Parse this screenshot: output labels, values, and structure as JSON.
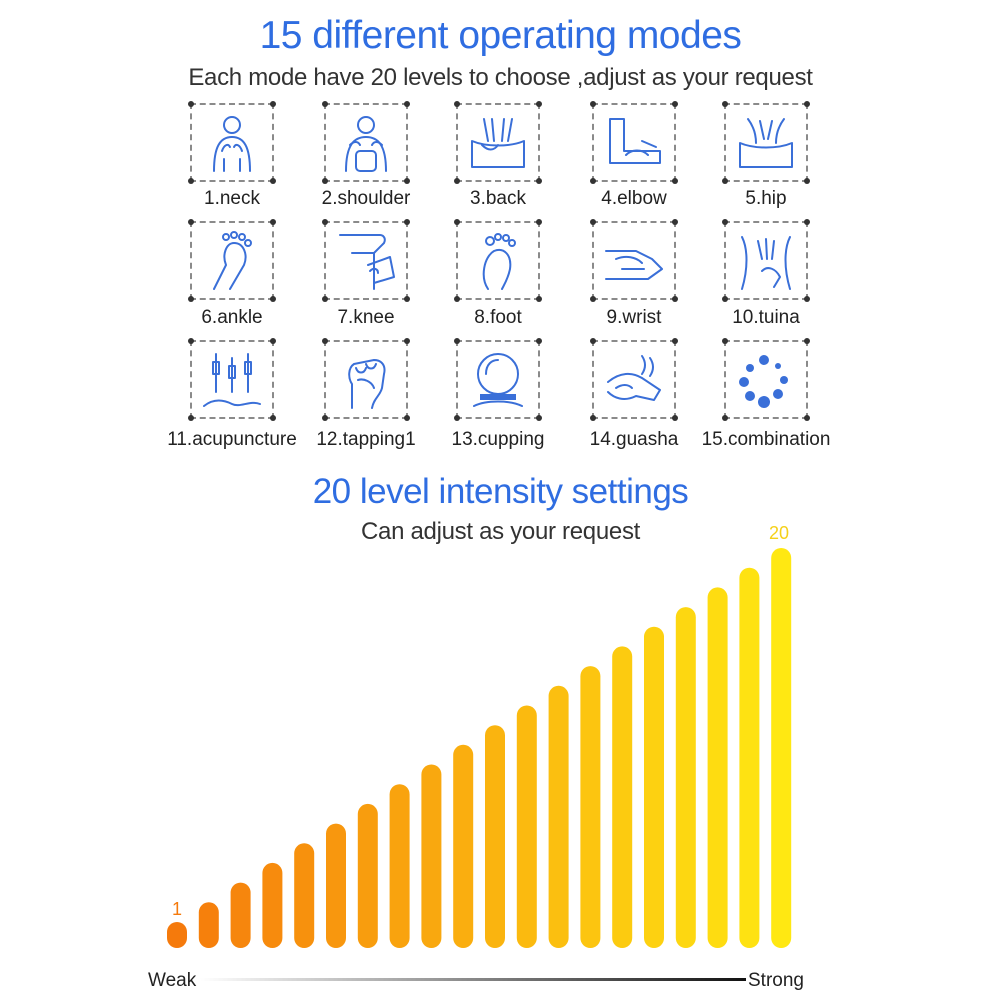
{
  "header": {
    "title": "15 different operating modes",
    "subtitle": "Each mode have 20 levels to choose ,adjust as your request"
  },
  "modes": [
    {
      "label": "1.neck",
      "icon": "neck-massage-icon"
    },
    {
      "label": "2.shoulder",
      "icon": "shoulder-massage-icon"
    },
    {
      "label": "3.back",
      "icon": "back-massage-icon"
    },
    {
      "label": "4.elbow",
      "icon": "elbow-massage-icon"
    },
    {
      "label": "5.hip",
      "icon": "hip-massage-icon"
    },
    {
      "label": "6.ankle",
      "icon": "ankle-massage-icon"
    },
    {
      "label": "7.knee",
      "icon": "knee-massage-icon"
    },
    {
      "label": "8.foot",
      "icon": "foot-massage-icon"
    },
    {
      "label": "9.wrist",
      "icon": "wrist-massage-icon"
    },
    {
      "label": "10.tuina",
      "icon": "tuina-massage-icon"
    },
    {
      "label": "11.acupuncture",
      "icon": "acupuncture-needles-icon"
    },
    {
      "label": "12.tapping1",
      "icon": "tapping-fist-icon"
    },
    {
      "label": "13.cupping",
      "icon": "cupping-glass-icon"
    },
    {
      "label": "14.guasha",
      "icon": "guasha-hand-icon"
    },
    {
      "label": "15.combination",
      "icon": "combination-dots-icon"
    }
  ],
  "intensity": {
    "title": "20 level intensity settings",
    "subtitle": "Can adjust as your request"
  },
  "chart_data": {
    "type": "bar",
    "categories": [
      "1",
      "2",
      "3",
      "4",
      "5",
      "6",
      "7",
      "8",
      "9",
      "10",
      "11",
      "12",
      "13",
      "14",
      "15",
      "16",
      "17",
      "18",
      "19",
      "20"
    ],
    "values": [
      1,
      2,
      3,
      4,
      5,
      6,
      7,
      8,
      9,
      10,
      11,
      12,
      13,
      14,
      15,
      16,
      17,
      18,
      19,
      20
    ],
    "first_label": "1",
    "last_label": "20",
    "min_label": "Weak",
    "max_label": "Strong",
    "color_start": "#f57a0c",
    "color_end": "#ffe812"
  },
  "colors": {
    "accent_blue": "#2f6de1",
    "icon_blue": "#3a6fd8"
  }
}
